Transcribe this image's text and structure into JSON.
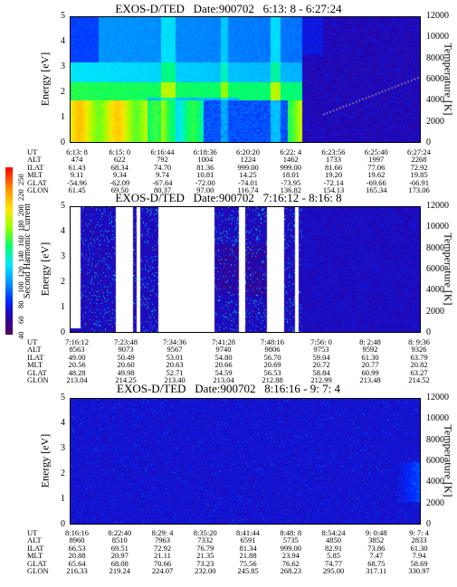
{
  "chart_data": [
    {
      "type": "heatmap",
      "title": "EXOS-D/TED   Date:900702   6:13: 8 - 6:27:24",
      "ylabel": "Energy [eV]",
      "y2label": "Temperature [K]",
      "ylim": [
        0,
        5
      ],
      "y2lim": [
        0,
        12000
      ],
      "yticks": [
        "5",
        "4",
        "3",
        "2",
        "1",
        "0"
      ],
      "y2ticks": [
        "12000",
        "10000",
        "8000",
        "6000",
        "4000",
        "2000",
        "0"
      ],
      "ephemeris_labels": [
        "UT",
        "ALT",
        "ILAT",
        "MLT",
        "GLAT",
        "GLON"
      ],
      "ephemeris": [
        [
          "6:13: 8",
          "474",
          "61.43",
          "9.11",
          "-54.96",
          "61.45"
        ],
        [
          "6:15: 0",
          "622",
          "68.34",
          "9.34",
          "-62.09",
          "69.50"
        ],
        [
          "6:16:44",
          "792",
          "74.70",
          "9.74",
          "-67.64",
          "80.37"
        ],
        [
          "6:18:36",
          "1004",
          "81.36",
          "10.81",
          "-72.00",
          "97.00"
        ],
        [
          "6:20:20",
          "1224",
          "999.00",
          "14.25",
          "-74.01",
          "116.74"
        ],
        [
          "6:22: 4",
          "1462",
          "999.00",
          "18.01",
          "-73.95",
          "136.82"
        ],
        [
          "6:23:56",
          "1733",
          "81.66",
          "19.20",
          "-72.14",
          "154.13"
        ],
        [
          "6:25:40",
          "1997",
          "77.06",
          "19.62",
          "-69.66",
          "165.34"
        ],
        [
          "6:27:24",
          "2268",
          "72.92",
          "19.85",
          "-66.91",
          "173.06"
        ]
      ]
    },
    {
      "type": "heatmap",
      "title": "EXOS-D/TED   Date:900702   7:16:12 - 8:16: 8",
      "ylabel": "Energy [eV]",
      "y2label": "Temperature [K]",
      "ylim": [
        0,
        5
      ],
      "y2lim": [
        0,
        12000
      ],
      "yticks": [
        "5",
        "4",
        "3",
        "2",
        "1",
        "0"
      ],
      "y2ticks": [
        "12000",
        "10000",
        "8000",
        "6000",
        "4000",
        "2000",
        "0"
      ],
      "ephemeris_labels": [
        "UT",
        "ALT",
        "ILAT",
        "MLT",
        "GLAT",
        "GLON"
      ],
      "ephemeris": [
        [
          "7:16:12",
          "8563",
          "49.00",
          "20.56",
          "48.28",
          "213.04"
        ],
        [
          "7:23:48",
          "9073",
          "50.49",
          "20.60",
          "49.98",
          "214.25"
        ],
        [
          "7:34:36",
          "9567",
          "53.01",
          "20.63",
          "52.71",
          "213.40"
        ],
        [
          "7:41:28",
          "9740",
          "54.80",
          "20.66",
          "54.59",
          "213.04"
        ],
        [
          "7:48:16",
          "9806",
          "56.70",
          "20.69",
          "56.53",
          "212.88"
        ],
        [
          "7:56: 0",
          "9753",
          "59.04",
          "20.72",
          "58.84",
          "212.99"
        ],
        [
          "8: 2:48",
          "9592",
          "61.30",
          "20.77",
          "60.99",
          "213.48"
        ],
        [
          "8: 9:36",
          "9326",
          "63.79",
          "20.82",
          "63.27",
          "214.52"
        ]
      ]
    },
    {
      "type": "heatmap",
      "title": "EXOS-D/TED   Date:900702   8:16:16 - 9: 7: 4",
      "ylabel": "Energy [eV]",
      "y2label": "Temperature [K]",
      "ylim": [
        0,
        5
      ],
      "y2lim": [
        0,
        12000
      ],
      "yticks": [
        "5",
        "4",
        "3",
        "2",
        "1",
        "0"
      ],
      "y2ticks": [
        "12000",
        "10000",
        "8000",
        "6000",
        "4000",
        "2000",
        "0"
      ],
      "ephemeris_labels": [
        "UT",
        "ALT",
        "ILAT",
        "MLT",
        "GLAT",
        "GLON"
      ],
      "ephemeris": [
        [
          "8:16:16",
          "8960",
          "66.53",
          "20.88",
          "65.64",
          "216.33"
        ],
        [
          "8:22:40",
          "8510",
          "69.51",
          "20.97",
          "68.08",
          "219.24"
        ],
        [
          "8:29: 4",
          "7963",
          "72.92",
          "21.11",
          "70.66",
          "224.07"
        ],
        [
          "8:35:20",
          "7332",
          "76.79",
          "21.35",
          "73.23",
          "232.00"
        ],
        [
          "8:41:44",
          "6591",
          "81.34",
          "21.88",
          "75.56",
          "245.85"
        ],
        [
          "8:48: 8",
          "5735",
          "999.00",
          "23.94",
          "76.62",
          "268.23"
        ],
        [
          "8:54:24",
          "4850",
          "82.91",
          "5.85",
          "74.77",
          "295.00"
        ],
        [
          "9: 0:48",
          "3852",
          "73.86",
          "7.47",
          "68.75",
          "317.11"
        ],
        [
          "9: 7: 4",
          "2833",
          "61.30",
          "7.94",
          "58.69",
          "330.97"
        ]
      ]
    }
  ],
  "colorbar": {
    "title": "Second Harmonic Current",
    "ticks": [
      "250",
      "220",
      "200",
      "180",
      "160",
      "140",
      "120",
      "100",
      "80",
      "60",
      "40"
    ]
  }
}
